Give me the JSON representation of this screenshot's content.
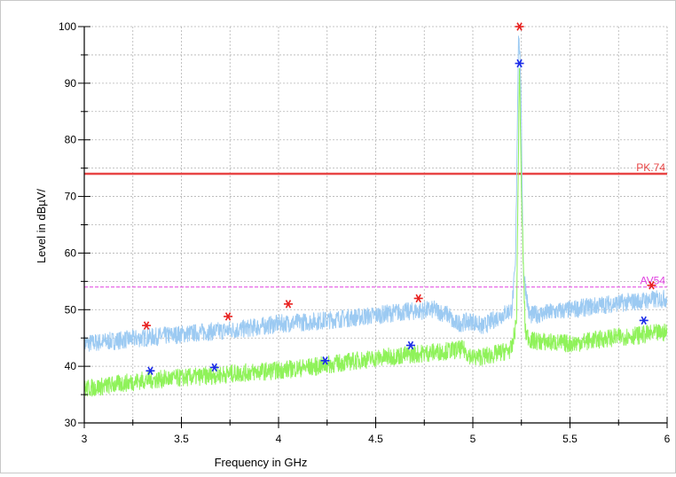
{
  "chart_data": {
    "type": "line",
    "xlabel": "Frequency in GHz",
    "ylabel": "Level in dBµV/",
    "xlim": [
      3,
      6
    ],
    "ylim": [
      30,
      100
    ],
    "x_ticks": [
      "3",
      "3.5",
      "4",
      "4.5",
      "5",
      "5.5",
      "6"
    ],
    "y_ticks": [
      "30",
      "40",
      "50",
      "60",
      "70",
      "80",
      "90",
      "100"
    ],
    "grid": true,
    "limit_lines": [
      {
        "label": "PK.74",
        "value": 74,
        "color": "#e84545",
        "style": "solid"
      },
      {
        "label": "AV54",
        "value": 54,
        "color": "#e040e0",
        "style": "dashed"
      }
    ],
    "series": [
      {
        "color": "#9ccaf2",
        "x": [
          3.0,
          3.3,
          3.6,
          3.8,
          4.0,
          4.2,
          4.5,
          4.6,
          4.8,
          4.88,
          4.9,
          5.0,
          5.05,
          5.12,
          5.2,
          5.22,
          5.235,
          5.245,
          5.26,
          5.29,
          5.5,
          5.7,
          6.0
        ],
        "y": [
          44,
          45,
          46,
          46.5,
          47.5,
          48,
          49,
          49.5,
          50,
          49,
          47.5,
          48,
          47,
          48.5,
          50,
          58,
          99,
          93,
          57,
          49,
          50,
          51,
          52
        ]
      },
      {
        "color": "#8ff25a",
        "x": [
          3.0,
          3.3,
          3.6,
          3.8,
          4.0,
          4.2,
          4.4,
          4.6,
          4.8,
          4.95,
          5.0,
          5.1,
          5.2,
          5.225,
          5.24,
          5.25,
          5.27,
          5.3,
          5.5,
          5.7,
          6.0
        ],
        "y": [
          36,
          37.5,
          38.2,
          38.8,
          39.3,
          40,
          41,
          41.8,
          42.5,
          43,
          41.5,
          42,
          43,
          48,
          94,
          70,
          46,
          44.5,
          44,
          45,
          46
        ]
      }
    ],
    "markers": [
      {
        "x": 3.32,
        "y": 47.2,
        "color": "#e8201e"
      },
      {
        "x": 3.74,
        "y": 48.8,
        "color": "#e8201e"
      },
      {
        "x": 4.05,
        "y": 51.0,
        "color": "#e8201e"
      },
      {
        "x": 4.72,
        "y": 52.0,
        "color": "#e8201e"
      },
      {
        "x": 5.24,
        "y": 100.0,
        "color": "#e8201e"
      },
      {
        "x": 5.92,
        "y": 54.3,
        "color": "#e8201e"
      },
      {
        "x": 3.34,
        "y": 39.2,
        "color": "#1a2be8"
      },
      {
        "x": 3.67,
        "y": 39.8,
        "color": "#1a2be8"
      },
      {
        "x": 4.24,
        "y": 41.0,
        "color": "#1a2be8"
      },
      {
        "x": 4.68,
        "y": 43.7,
        "color": "#1a2be8"
      },
      {
        "x": 5.24,
        "y": 93.5,
        "color": "#1a2be8"
      },
      {
        "x": 5.88,
        "y": 48.1,
        "color": "#1a2be8"
      }
    ]
  }
}
